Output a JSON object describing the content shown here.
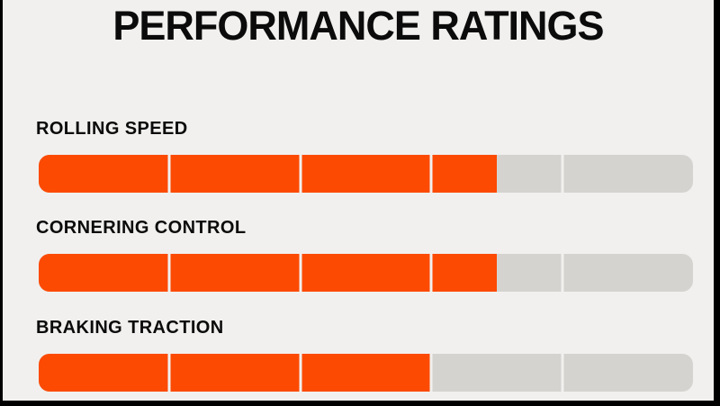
{
  "title": "PERFORMANCE RATINGS",
  "colors": {
    "accent": "#FC4A02",
    "track": "#D5D3D0",
    "background": "#F1F0EE",
    "frame_border": "#000000",
    "text": "#0B0B0B"
  },
  "chart_data": {
    "type": "bar",
    "title": "PERFORMANCE RATINGS",
    "categories": [
      "ROLLING SPEED",
      "CORNERING CONTROL",
      "BRAKING TRACTION"
    ],
    "values": [
      3.5,
      3.5,
      3.0
    ],
    "value_max": 5,
    "segments": 5,
    "orientation": "horizontal",
    "grid": false,
    "legend": false
  },
  "ratings": [
    {
      "label": "ROLLING SPEED",
      "value": 3.5,
      "max": 5,
      "percent": 70
    },
    {
      "label": "CORNERING CONTROL",
      "value": 3.5,
      "max": 5,
      "percent": 70
    },
    {
      "label": "BRAKING TRACTION",
      "value": 3.0,
      "max": 5,
      "percent": 60
    }
  ]
}
